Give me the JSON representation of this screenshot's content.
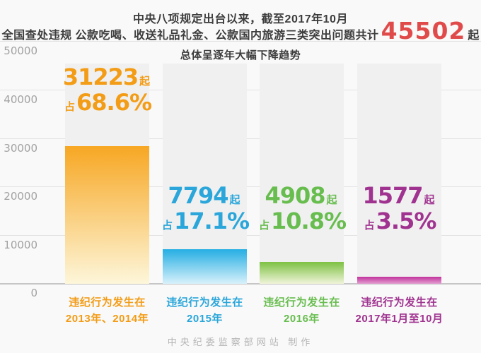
{
  "header": {
    "line1": "中央八项规定出台以来，截至2017年10月",
    "line2_prefix": "全国查处违规 公款吃喝、收送礼品礼金、公款国内旅游三类突出问题共计",
    "line2_number": "45502",
    "line2_suffix": "起",
    "line3": "总体呈逐年大幅下降趋势"
  },
  "colors": {
    "accent_red": "#e04a4a",
    "page_background": "#f9f9f9",
    "track_background": "#f0f0f0",
    "gridline": "#e2e2e2",
    "axis_text": "#a2a2a2"
  },
  "chart_data": {
    "type": "bar",
    "title": "中央八项规定出台以来，截至2017年10月 全国查处违规 公款吃喝、收送礼品礼金、公款国内旅游三类突出问题共计45502起 总体呈逐年大幅下降趋势",
    "total": 45502,
    "ylim": [
      0,
      50000
    ],
    "y_ticks": [
      "50000",
      "40000",
      "30000",
      "20000",
      "10000",
      "0"
    ],
    "unit_suffix": "起",
    "share_prefix": "占",
    "grid": "on",
    "bars": [
      {
        "value": 31223,
        "count": "31223",
        "share": "68.6%",
        "category_line1": "违纪行为发生在",
        "category_line2": "2013年、2014年",
        "color": "#f7a723",
        "color_fade": "#fdf6da",
        "text_color": "#f39c16"
      },
      {
        "value": 7794,
        "count": "7794",
        "share": "17.1%",
        "category_line1": "违纪行为发生在",
        "category_line2": "2015年",
        "color": "#25aee3",
        "color_fade": "#d8f1fb",
        "text_color": "#2ba6da"
      },
      {
        "value": 4908,
        "count": "4908",
        "share": "10.8%",
        "category_line1": "违纪行为发生在",
        "category_line2": "2016年",
        "color": "#7dc142",
        "color_fade": "#f0f4da",
        "text_color": "#68bd4f"
      },
      {
        "value": 1577,
        "count": "1577",
        "share": "3.5%",
        "category_line1": "违纪行为发生在",
        "category_line2": "2017年1月至10月",
        "color": "#c2329c",
        "color_fade": "#e2a0d0",
        "text_color": "#a03390"
      }
    ]
  },
  "footer": {
    "credit": "中央纪委监察部网站 制作"
  }
}
